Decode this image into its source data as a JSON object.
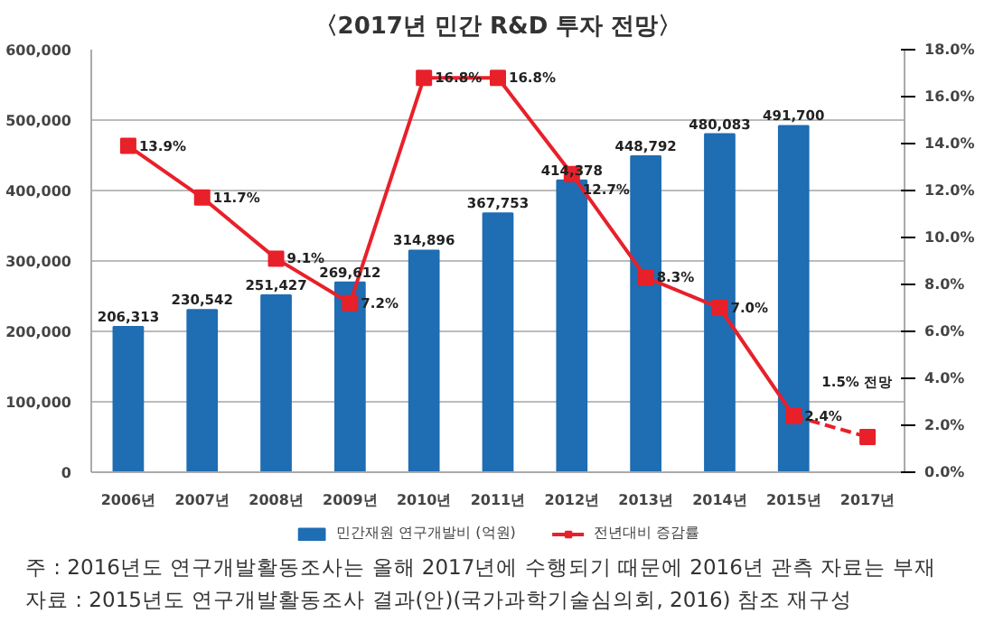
{
  "chart_data": {
    "type": "bar",
    "title": "〈2017년 민간 R&D 투자 전망〉",
    "categories": [
      "2006년",
      "2007년",
      "2008년",
      "2009년",
      "2010년",
      "2011년",
      "2012년",
      "2013년",
      "2014년",
      "2015년",
      "2017년"
    ],
    "series": [
      {
        "name": "민간재원 연구개발비 (억원)",
        "color": "#1f6db3",
        "values": [
          206313,
          230542,
          251427,
          269612,
          314896,
          367753,
          414378,
          448792,
          480083,
          491700,
          null
        ],
        "value_labels": [
          "206,313",
          "230,542",
          "251,427",
          "269,612",
          "314,896",
          "367,753",
          "414,378",
          "448,792",
          "480,083",
          "491,700",
          null
        ]
      },
      {
        "name": "전년대비 증감률",
        "type": "line",
        "axis": "y2",
        "color": "#e8202a",
        "marker": "square",
        "line_style": "solid",
        "values": [
          13.9,
          11.7,
          9.1,
          7.2,
          16.8,
          16.8,
          12.7,
          8.3,
          7.0,
          2.4,
          null
        ],
        "value_labels": [
          "13.9%",
          "11.7%",
          "9.1%",
          "7.2%",
          "16.8%",
          "16.8%",
          "12.7%",
          "8.3%",
          "7.0%",
          "2.4%",
          null
        ]
      },
      {
        "type": "line",
        "axis": "y2",
        "color": "#e8202a",
        "marker": "square",
        "line_style": "dashed",
        "values": [
          null,
          null,
          null,
          null,
          null,
          null,
          null,
          null,
          null,
          2.4,
          1.5
        ],
        "value_labels": [
          null,
          null,
          null,
          null,
          null,
          null,
          null,
          null,
          null,
          null,
          "1.5% 전망"
        ]
      }
    ],
    "ylim": [
      0,
      600000
    ],
    "yticks": [
      0,
      {
        "value": 100000,
        "label": "100,000"
      },
      {
        "value": 200000,
        "label": "200,000"
      },
      {
        "value": 300000,
        "label": "300,000"
      },
      {
        "value": 400000,
        "label": "400,000"
      },
      {
        "value": 500000,
        "label": "500,000"
      },
      {
        "value": 600000,
        "label": "600,000"
      }
    ],
    "y2lim": [
      0,
      18
    ],
    "y2ticks": [
      {
        "value": 0,
        "label": "0.0%"
      },
      {
        "value": 2,
        "label": "2.0%"
      },
      {
        "value": 4,
        "label": "4.0%"
      },
      {
        "value": 6,
        "label": "6.0%"
      },
      {
        "value": 8,
        "label": "8.0%"
      },
      {
        "value": 10,
        "label": "10.0%"
      },
      {
        "value": 12,
        "label": "12.0%"
      },
      {
        "value": 14,
        "label": "14.0%"
      },
      {
        "value": 16,
        "label": "16.0%"
      },
      {
        "value": 18,
        "label": "18.0%"
      }
    ],
    "grid": "y",
    "legend": "bottom",
    "annotations": [
      "주 : 2016년도 연구개발활동조사는 올해 2017년에 수행되기 때문에 2016년 관측 자료는 부재",
      "자료 : 2015년도 연구개발활동조사 결과(안)(국가과학기술심의회, 2016) 참조 재구성"
    ]
  }
}
